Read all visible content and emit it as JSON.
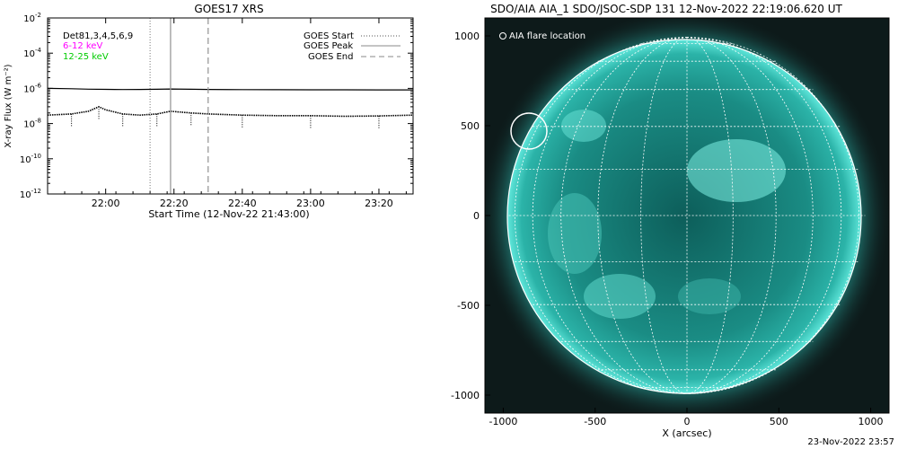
{
  "chart_data": [
    {
      "type": "line",
      "title": "GOES17 XRS",
      "xlabel": "Start Time (12-Nov-22 21:43:00)",
      "ylabel": "X-ray Flux (W m⁻²)",
      "x_range": [
        "21:43",
        "23:30"
      ],
      "x_ticks": [
        "22:00",
        "22:20",
        "22:40",
        "23:00",
        "23:20"
      ],
      "y_scale": "log",
      "ylim": [
        1e-12,
        0.01
      ],
      "y_ticks": [
        {
          "value": 1e-12,
          "base": "10",
          "exp": "-12"
        },
        {
          "value": 1e-10,
          "base": "10",
          "exp": "-10"
        },
        {
          "value": 1e-08,
          "base": "10",
          "exp": "-8"
        },
        {
          "value": 1e-06,
          "base": "10",
          "exp": "-6"
        },
        {
          "value": 0.0001,
          "base": "10",
          "exp": "-4"
        },
        {
          "value": 0.01,
          "base": "10",
          "exp": "-2"
        }
      ],
      "annotations": [
        {
          "text": "Det81,3,4,5,6,9",
          "color": "#000000"
        },
        {
          "text": "6-12 keV",
          "color": "#ff00ff"
        },
        {
          "text": "12-25 keV",
          "color": "#00cc00"
        }
      ],
      "legend": {
        "placement": "top-right",
        "entries": [
          {
            "label": "GOES Start",
            "style": "dotted"
          },
          {
            "label": "GOES Peak",
            "style": "solid"
          },
          {
            "label": "GOES End",
            "style": "dashed"
          }
        ]
      },
      "events": {
        "start": "22:13",
        "peak": "22:19",
        "end": "22:30"
      },
      "series": [
        {
          "style": "solid",
          "x": [
            "21:43",
            "21:50",
            "21:55",
            "22:00",
            "22:05",
            "22:10",
            "22:15",
            "22:19",
            "22:25",
            "22:30",
            "22:40",
            "22:50",
            "23:00",
            "23:10",
            "23:20",
            "23:30"
          ],
          "values": [
            1e-06,
            9.5e-07,
            9e-07,
            8.8e-07,
            8.6e-07,
            8.7e-07,
            8.9e-07,
            9.2e-07,
            8.9e-07,
            8.7e-07,
            8.5e-07,
            8.4e-07,
            8.3e-07,
            8.3e-07,
            8.2e-07,
            8.2e-07
          ]
        },
        {
          "style": "dotted",
          "x": [
            "21:43",
            "21:50",
            "21:55",
            "21:58",
            "22:00",
            "22:05",
            "22:10",
            "22:15",
            "22:19",
            "22:25",
            "22:30",
            "22:40",
            "22:50",
            "23:00",
            "23:10",
            "23:20",
            "23:30"
          ],
          "values": [
            3e-08,
            3.5e-08,
            5e-08,
            9e-08,
            6e-08,
            3.5e-08,
            3e-08,
            3.5e-08,
            5e-08,
            4e-08,
            3.5e-08,
            3e-08,
            2.8e-08,
            2.8e-08,
            2.6e-08,
            2.7e-08,
            3e-08
          ]
        }
      ],
      "grid": false
    },
    {
      "type": "heatmap",
      "title": "SDO/AIA AIA_1 SDO/JSOC-SDP 131 12-Nov-2022 22:19:06.620 UT",
      "xlabel": "X (arcsec)",
      "ylabel": "",
      "xlim": [
        -1100,
        1100
      ],
      "ylim": [
        -1100,
        1100
      ],
      "x_ticks": [
        -1000,
        -500,
        0,
        500,
        1000
      ],
      "y_ticks": [
        -1000,
        -500,
        0,
        500,
        1000
      ],
      "colormap": "teal",
      "legend": {
        "placement": "top-left",
        "entries": [
          {
            "label": "AIA flare location",
            "marker": "circle"
          }
        ]
      },
      "flare_location": {
        "x": -860,
        "y": 470
      },
      "solar_radius_arcsec": 970,
      "grid": true
    }
  ],
  "footer": {
    "timestamp": "23-Nov-2022 23:57"
  },
  "colors": {
    "background": "#ffffff",
    "disk_teal": "#3fd6c6",
    "sky": "#0d1a1a"
  }
}
